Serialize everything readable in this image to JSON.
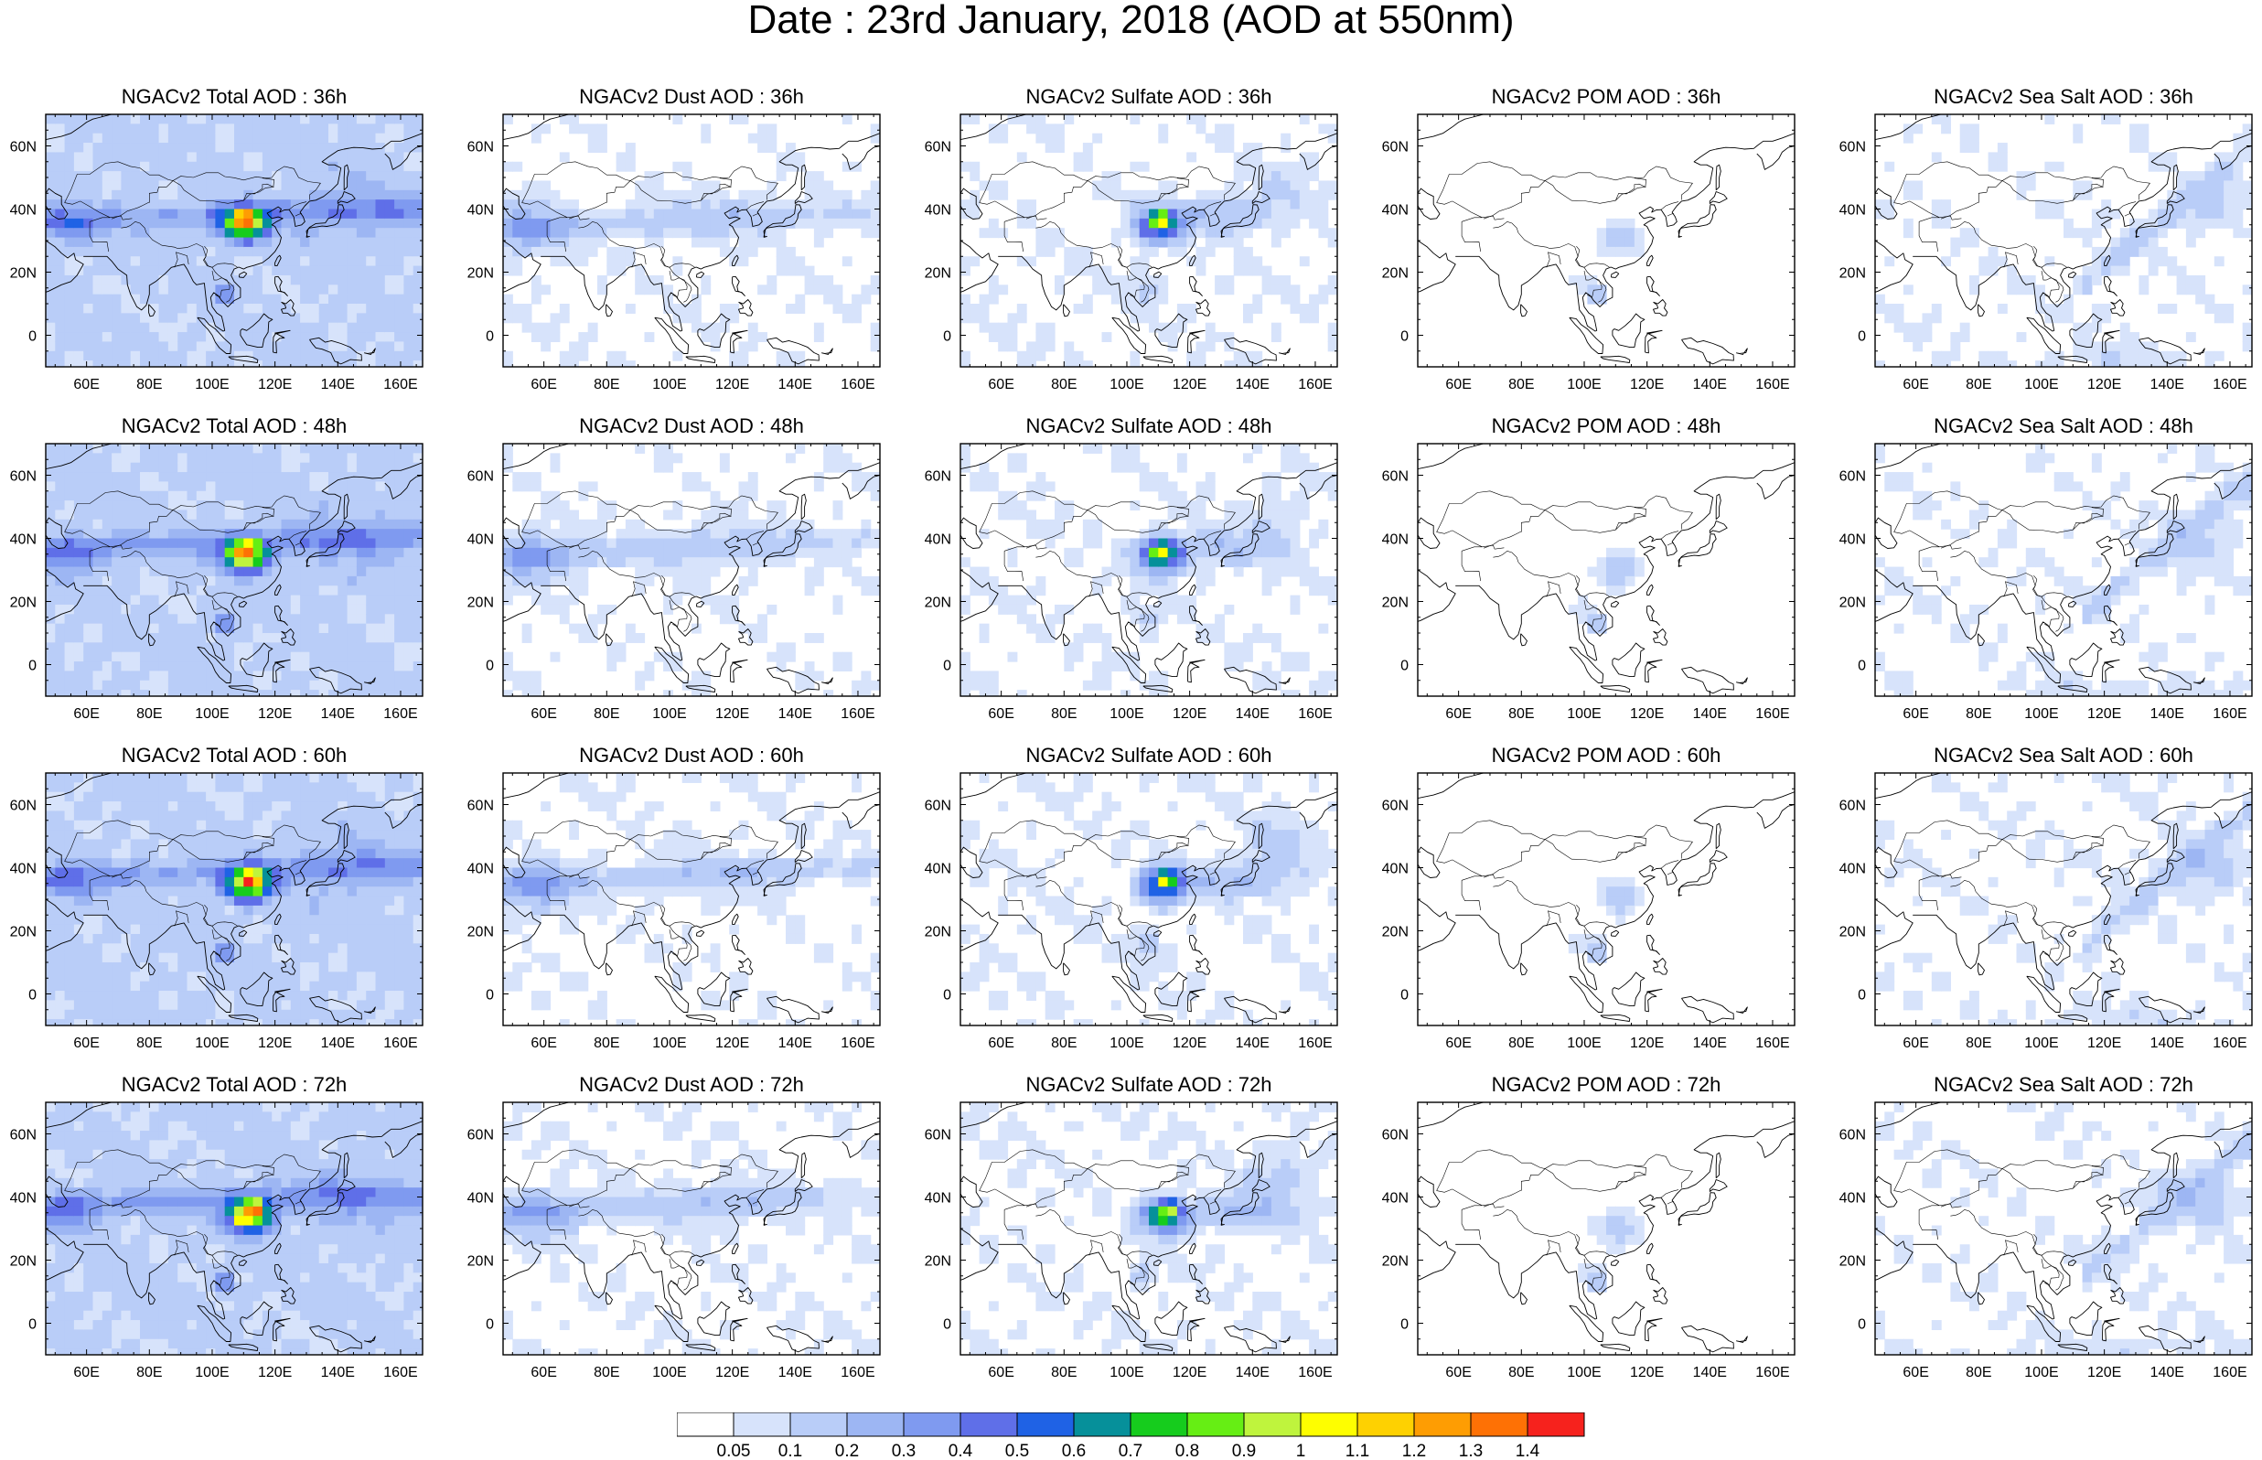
{
  "title": "Date : 23rd January, 2018 (AOD at 550nm)",
  "map": {
    "lon_range": [
      47,
      167
    ],
    "lat_range": [
      -10,
      70
    ],
    "lon_ticks": [
      "60E",
      "80E",
      "100E",
      "120E",
      "140E",
      "160E"
    ],
    "lat_ticks": [
      "0",
      "20N",
      "40N",
      "60N"
    ]
  },
  "colorbar": {
    "labels": [
      "0.05",
      "0.1",
      "0.2",
      "0.3",
      "0.4",
      "0.5",
      "0.6",
      "0.7",
      "0.8",
      "0.9",
      "1",
      "1.1",
      "1.2",
      "1.3",
      "1.4"
    ],
    "colors": [
      "#ffffff",
      "#d7e3fb",
      "#b9cdf8",
      "#9db6f3",
      "#7f9af0",
      "#5f6fe8",
      "#1f62e5",
      "#06909a",
      "#16cc1d",
      "#66ee14",
      "#bff43d",
      "#fefe00",
      "#fed101",
      "#fe9d03",
      "#fe7105",
      "#f6221d"
    ]
  },
  "panels": [
    {
      "title": "NGACv2 Total AOD : 36h",
      "species": "total",
      "hour": "36h"
    },
    {
      "title": "NGACv2 Dust AOD : 36h",
      "species": "dust",
      "hour": "36h"
    },
    {
      "title": "NGACv2 Sulfate AOD : 36h",
      "species": "sulfate",
      "hour": "36h"
    },
    {
      "title": "NGACv2 POM AOD : 36h",
      "species": "pom",
      "hour": "36h"
    },
    {
      "title": "NGACv2 Sea Salt AOD : 36h",
      "species": "seasalt",
      "hour": "36h"
    },
    {
      "title": "NGACv2 Total AOD : 48h",
      "species": "total",
      "hour": "48h"
    },
    {
      "title": "NGACv2 Dust AOD : 48h",
      "species": "dust",
      "hour": "48h"
    },
    {
      "title": "NGACv2 Sulfate AOD : 48h",
      "species": "sulfate",
      "hour": "48h"
    },
    {
      "title": "NGACv2 POM AOD : 48h",
      "species": "pom",
      "hour": "48h"
    },
    {
      "title": "NGACv2 Sea Salt AOD : 48h",
      "species": "seasalt",
      "hour": "48h"
    },
    {
      "title": "NGACv2 Total AOD : 60h",
      "species": "total",
      "hour": "60h"
    },
    {
      "title": "NGACv2 Dust AOD : 60h",
      "species": "dust",
      "hour": "60h"
    },
    {
      "title": "NGACv2 Sulfate AOD : 60h",
      "species": "sulfate",
      "hour": "60h"
    },
    {
      "title": "NGACv2 POM AOD : 60h",
      "species": "pom",
      "hour": "60h"
    },
    {
      "title": "NGACv2 Sea Salt AOD : 60h",
      "species": "seasalt",
      "hour": "60h"
    },
    {
      "title": "NGACv2 Total AOD : 72h",
      "species": "total",
      "hour": "72h"
    },
    {
      "title": "NGACv2 Dust AOD : 72h",
      "species": "dust",
      "hour": "72h"
    },
    {
      "title": "NGACv2 Sulfate AOD : 72h",
      "species": "sulfate",
      "hour": "72h"
    },
    {
      "title": "NGACv2 POM AOD : 72h",
      "species": "pom",
      "hour": "72h"
    },
    {
      "title": "NGACv2 Sea Salt  AOD : 72h",
      "species": "seasalt",
      "hour": "72h"
    }
  ]
}
